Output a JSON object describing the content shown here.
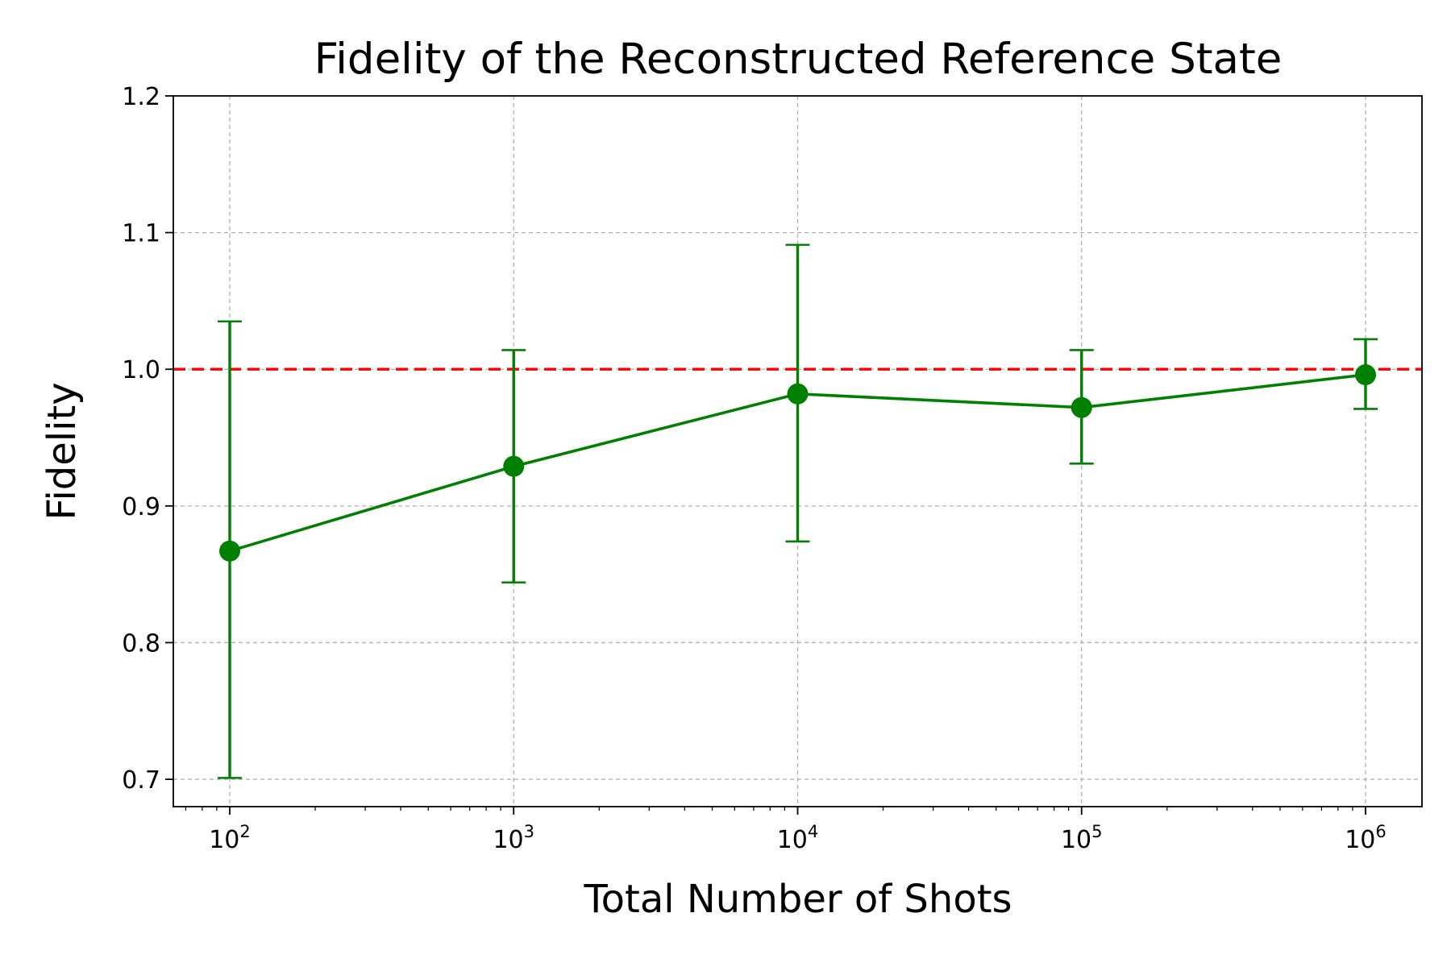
{
  "chart_data": {
    "type": "line",
    "title": "Fidelity of the Reconstructed Reference State",
    "xlabel": "Total Number of Shots",
    "ylabel": "Fidelity",
    "x_scale": "log",
    "x_ticks": [
      {
        "base": "10",
        "exp": "2",
        "value": 100
      },
      {
        "base": "10",
        "exp": "3",
        "value": 1000
      },
      {
        "base": "10",
        "exp": "4",
        "value": 10000
      },
      {
        "base": "10",
        "exp": "5",
        "value": 100000
      },
      {
        "base": "10",
        "exp": "6",
        "value": 1000000
      }
    ],
    "y_ticks": [
      "0.7",
      "0.8",
      "0.9",
      "1.0",
      "1.1",
      "1.2"
    ],
    "ylim": [
      0.68,
      1.2
    ],
    "grid": true,
    "reference_line": {
      "y": 1.0,
      "style": "dashed",
      "color": "#ff0000"
    },
    "series": [
      {
        "color": "#008000",
        "points": [
          {
            "x": 100,
            "y": 0.867,
            "err_low": 0.701,
            "err_high": 1.035
          },
          {
            "x": 1000,
            "y": 0.929,
            "err_low": 0.844,
            "err_high": 1.014
          },
          {
            "x": 10000,
            "y": 0.982,
            "err_low": 0.874,
            "err_high": 1.091
          },
          {
            "x": 100000,
            "y": 0.972,
            "err_low": 0.931,
            "err_high": 1.014
          },
          {
            "x": 1000000,
            "y": 0.996,
            "err_low": 0.971,
            "err_high": 1.022
          }
        ]
      }
    ]
  }
}
